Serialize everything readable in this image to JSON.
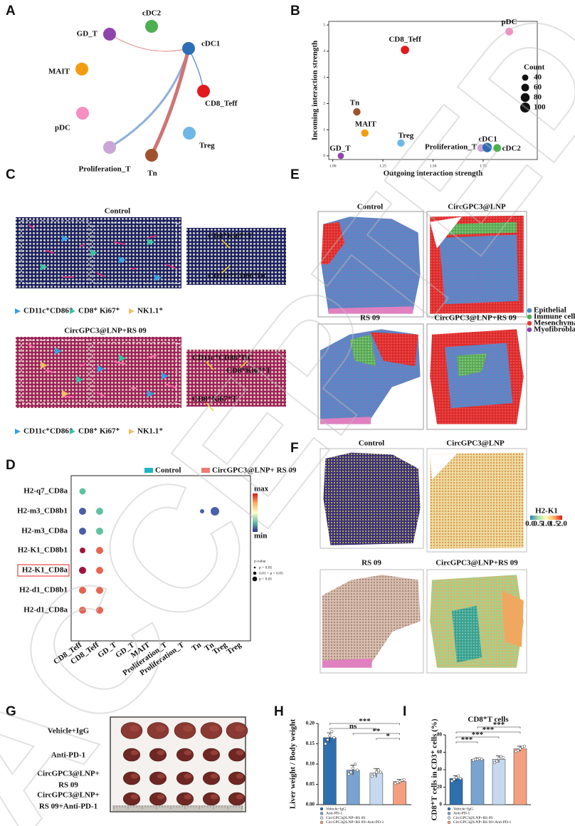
{
  "watermark": "ACCEPTED",
  "panels": {
    "A": {
      "label": "A",
      "nodes": [
        {
          "label": "cDC2",
          "color": "#4caf50"
        },
        {
          "label": "GD_T",
          "color": "#8e44ad"
        },
        {
          "label": "cDC1",
          "color": "#2d6db5"
        },
        {
          "label": "MAIT",
          "color": "#f39c12"
        },
        {
          "label": "CD8_Teff",
          "color": "#e31a1c"
        },
        {
          "label": "pDC",
          "color": "#f48fc0"
        },
        {
          "label": "Treg",
          "color": "#6fb7e6"
        },
        {
          "label": "Proliferation_T",
          "color": "#c9a6d6"
        },
        {
          "label": "Tn",
          "color": "#a0522d"
        }
      ]
    },
    "B": {
      "label": "B"
    },
    "C": {
      "label": "C",
      "groups": [
        {
          "title": "Control",
          "inset_labels": [
            "CD8⁺Ki67⁺T",
            "CD11c⁺CD86⁺DC"
          ]
        },
        {
          "title": "CircGPC3@LNP+RS 09",
          "inset_labels": [
            "CD11c⁺CD86⁺DC",
            "CD8⁺Ki67⁺T",
            "CD8⁺Ki67⁺T"
          ]
        }
      ],
      "legend": [
        {
          "label": "CD11c⁺CD86⁺",
          "color": "#3aa0e0"
        },
        {
          "label": "CD8⁺ Ki67⁺",
          "color": "#3cc0a0"
        },
        {
          "label": "NK1.1⁺",
          "color": "#f0c060"
        }
      ]
    },
    "D": {
      "label": "D",
      "legend": [
        {
          "label": "Control",
          "color": "#1fb5c0"
        },
        {
          "label": "CircGPC3@LNP+ RS 09",
          "color": "#ee7c74"
        }
      ],
      "rows": [
        "H2-q7_CD8a",
        "H2-m3_CD8b1",
        "H2-m3_CD8a",
        "H2-K1_CD8b1",
        "H2-K1_CD8a",
        "H2-d1_CD8b1",
        "H2-d1_CD8a"
      ],
      "columns": [
        {
          "label": "CD8_Teff",
          "color": "#ee7c74"
        },
        {
          "label": "CD8_Teff",
          "color": "#1fb5c0"
        },
        {
          "label": "GD_T",
          "color": "#ee7c74"
        },
        {
          "label": "GD_T",
          "color": "#1fb5c0"
        },
        {
          "label": "MAIT",
          "color": "#ee7c74"
        },
        {
          "label": "Proliferation_T",
          "color": "#ee7c74"
        },
        {
          "label": "Proliferation_T",
          "color": "#1fb5c0"
        },
        {
          "label": "Tn",
          "color": "#ee7c74"
        },
        {
          "label": "Tn",
          "color": "#1fb5c0"
        },
        {
          "label": "Treg",
          "color": "#ee7c74"
        },
        {
          "label": "Treg",
          "color": "#1fb5c0"
        }
      ],
      "colorbar": [
        "max",
        "min"
      ],
      "pvalue": {
        "title": "p-value",
        "levels": [
          "p > 0.05",
          "0.01 < p < 0.05",
          "p < 0.01"
        ]
      }
    },
    "E": {
      "label": "E",
      "titles": [
        "Control",
        "CircGPC3@LNP",
        "RS 09",
        "CircGPC3@LNP+RS 09"
      ],
      "legend": [
        {
          "label": "Epithelial",
          "color": "#4a8cc8"
        },
        {
          "label": "Immune cell",
          "color": "#4caf50"
        },
        {
          "label": "Mesenchymal",
          "color": "#e53935"
        },
        {
          "label": "Myofibroblast",
          "color": "#8e44ad"
        }
      ]
    },
    "F": {
      "label": "F",
      "titles": [
        "Control",
        "CircGPC3@LNP",
        "RS 09",
        "CircGPC3@LNP+RS 09"
      ],
      "colorbar": {
        "title": "H2-K1",
        "ticks": [
          "0.0",
          "0.5",
          "1.0",
          "1.5",
          "2.0"
        ]
      }
    },
    "G": {
      "label": "G",
      "rows": [
        [
          "Vehicle+IgG"
        ],
        [
          "Anti-PD-1"
        ],
        [
          "CircGPC3@LNP+",
          "RS 09"
        ],
        [
          "CircGPC3@LNP+",
          "RS 09+Anti-PD-1"
        ]
      ]
    },
    "H": {
      "label": "H"
    },
    "I": {
      "label": "I"
    }
  },
  "chart_data": [
    {
      "type": "scatter",
      "x_label": "Outgoing interaction strength",
      "y_label": "Incoming interaction strength",
      "xlim": [
        0.98,
        2.02
      ],
      "ylim": [
        -0.14,
        5.14
      ],
      "xticks": [
        {
          "value": 1,
          "label": "1.00"
        },
        {
          "value": 1.25,
          "label": "1.25"
        },
        {
          "value": 1.5,
          "label": "1.50"
        },
        {
          "value": 1.75,
          "label": "1.75"
        }
      ],
      "yticks": [
        0,
        1,
        2,
        3,
        4,
        5
      ],
      "series": [
        {
          "name": "pDC",
          "color": "#f48fc0",
          "x": [
            1.88
          ],
          "values": [
            4.75
          ],
          "sizes": [
            60
          ]
        },
        {
          "name": "CD8_Teff",
          "color": "#e31a1c",
          "x": [
            1.36
          ],
          "values": [
            4.05
          ],
          "sizes": [
            70
          ]
        },
        {
          "name": "Tn",
          "color": "#a0522d",
          "x": [
            1.12
          ],
          "values": [
            1.68
          ],
          "sizes": [
            55
          ]
        },
        {
          "name": "MAIT",
          "color": "#f39c12",
          "x": [
            1.16
          ],
          "values": [
            0.87
          ],
          "sizes": [
            55
          ]
        },
        {
          "name": "Treg",
          "color": "#6fb7e6",
          "x": [
            1.34
          ],
          "values": [
            0.49
          ],
          "sizes": [
            55
          ]
        },
        {
          "name": "GD_T",
          "color": "#8e44ad",
          "x": [
            1.04
          ],
          "values": [
            0
          ],
          "sizes": [
            40
          ]
        },
        {
          "name": "Proliferation_T",
          "color": "#c9a6d6",
          "x": [
            1.74
          ],
          "values": [
            0.3
          ],
          "sizes": [
            60
          ]
        },
        {
          "name": "cDC1",
          "color": "#2d6db5",
          "x": [
            1.77
          ],
          "values": [
            0.32
          ],
          "sizes": [
            90
          ]
        },
        {
          "name": "cDC2",
          "color": "#4caf50",
          "x": [
            1.82
          ],
          "values": [
            0.3
          ],
          "sizes": [
            60
          ]
        }
      ],
      "size_legend": {
        "title": "Count",
        "values": [
          40,
          60,
          80,
          100
        ]
      }
    },
    {
      "type": "bar",
      "y_label": "Liver weight / Body weight",
      "categories": [
        "Vehicle+IgG",
        "Anti-PD-1",
        "CircGPC3@LNP+RS 09",
        "CircGPC3@LNP+RS 09+Anti-PD-1"
      ],
      "colors": [
        "#2e6fae",
        "#7aa3cf",
        "#c6d9ee",
        "#f4a080"
      ],
      "values": [
        0.165,
        0.085,
        0.078,
        0.057
      ],
      "errors": [
        0.012,
        0.012,
        0.011,
        0.005
      ],
      "points": [
        [
          0.15,
          0.16,
          0.17,
          0.18,
          0.165
        ],
        [
          0.075,
          0.08,
          0.09,
          0.1,
          0.085
        ],
        [
          0.07,
          0.075,
          0.08,
          0.085,
          0.08
        ],
        [
          0.052,
          0.055,
          0.057,
          0.06,
          0.062
        ]
      ],
      "ylim": [
        0,
        0.2
      ],
      "yticks": [
        {
          "value": 0,
          "label": "0.00"
        },
        {
          "value": 0.05,
          "label": "0.05"
        },
        {
          "value": 0.1,
          "label": "0.10"
        },
        {
          "value": 0.15,
          "label": "0.15"
        },
        {
          "value": 0.2,
          "label": "0.20"
        }
      ],
      "significance": [
        "***",
        "ns",
        "**",
        "*"
      ]
    },
    {
      "type": "bar",
      "title": "CD8⁺T cells",
      "y_label": "CD8⁺T cells in CD3⁺ cells (%)",
      "categories": [
        "Vehicle+IgG",
        "Anti-PD-1",
        "CircGPC3@LNP+RS 09",
        "CircGPC3@LNP+RS 09+Anti-PD-1"
      ],
      "colors": [
        "#2e6fae",
        "#7aa3cf",
        "#c6d9ee",
        "#f4a080"
      ],
      "values": [
        30,
        52,
        52,
        64
      ],
      "errors": [
        3,
        1.5,
        4,
        3
      ],
      "points": [
        [
          27,
          29,
          31,
          33,
          30
        ],
        [
          51,
          52,
          52,
          53,
          52
        ],
        [
          48,
          50,
          53,
          55,
          54
        ],
        [
          61,
          62,
          64,
          66,
          67
        ]
      ],
      "ylim": [
        0,
        80
      ],
      "yticks": [
        0,
        20,
        40,
        60,
        80
      ],
      "significance": [
        "***",
        "***",
        "***",
        "***"
      ]
    }
  ]
}
